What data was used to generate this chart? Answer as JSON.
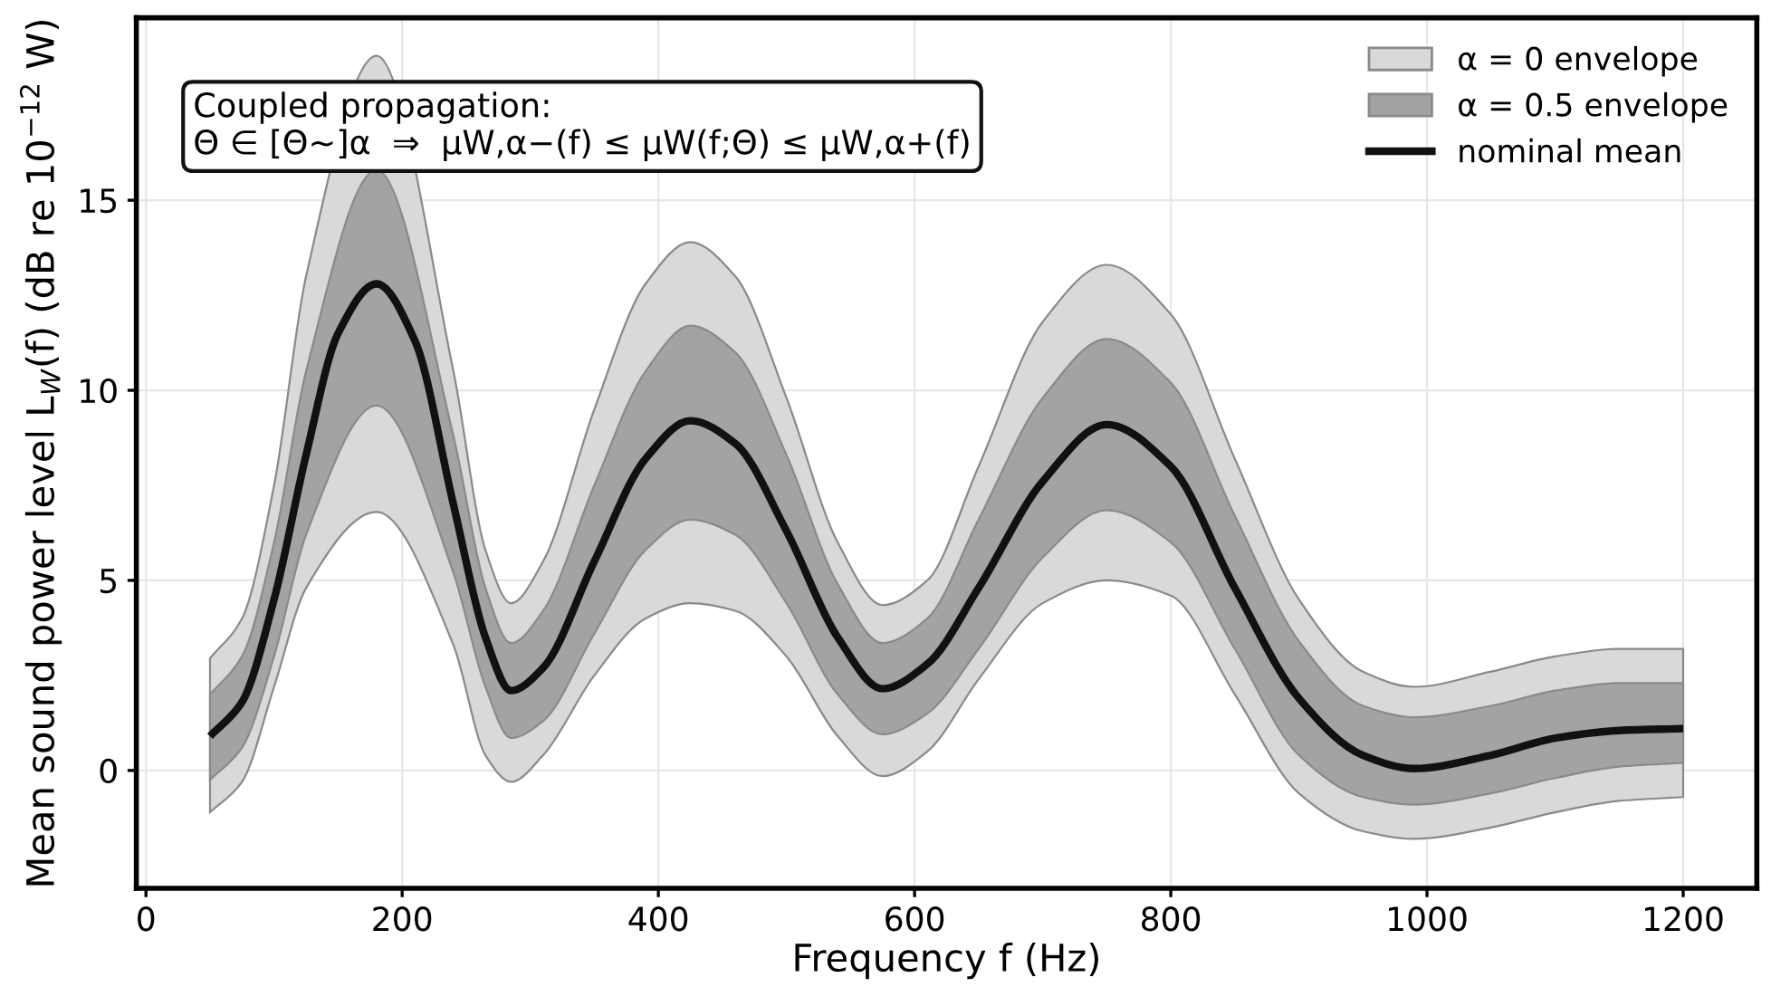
{
  "chart_data": {
    "type": "line",
    "xlabel": "Frequency f (Hz)",
    "ylabel": "Mean sound power level L$_{W}$(f) (dB re 10$^{−12}$ W)",
    "x": [
      50,
      75,
      100,
      125,
      180,
      240,
      265,
      285,
      310,
      350,
      390,
      425,
      460,
      500,
      540,
      575,
      610,
      650,
      700,
      750,
      800,
      850,
      900,
      950,
      990,
      1050,
      1100,
      1150,
      1200
    ],
    "series": [
      {
        "name": "α = 0 envelope",
        "type": "line",
        "color": "#d9d9d9",
        "values": [
          null,
          null,
          null,
          null,
          null,
          null,
          null,
          null,
          null,
          null,
          null,
          null,
          null,
          null,
          null,
          null,
          null,
          null,
          null,
          null,
          null,
          null,
          null,
          null,
          null,
          null,
          null,
          null,
          null
        ],
        "lower": [
          -1.1,
          -0.3,
          2.2,
          4.8,
          6.8,
          3.3,
          0.4,
          -0.3,
          0.4,
          2.5,
          4.0,
          4.4,
          4.2,
          3.0,
          0.9,
          -0.15,
          0.5,
          2.4,
          4.4,
          5.0,
          4.6,
          2.0,
          -0.6,
          -1.6,
          -1.8,
          -1.5,
          -1.1,
          -0.8,
          -0.7
        ],
        "upper": [
          2.95,
          4.0,
          7.5,
          13.0,
          18.8,
          10.5,
          5.8,
          4.4,
          5.5,
          9.5,
          12.8,
          13.9,
          13.0,
          9.8,
          6.0,
          4.35,
          5.0,
          8.0,
          11.8,
          13.3,
          12.0,
          8.2,
          4.5,
          2.6,
          2.2,
          2.6,
          3.0,
          3.2,
          3.2
        ]
      },
      {
        "name": "α = 0.5 envelope",
        "type": "line",
        "color": "#a3a3a3",
        "values": [
          null,
          null,
          null,
          null,
          null,
          null,
          null,
          null,
          null,
          null,
          null,
          null,
          null,
          null,
          null,
          null,
          null,
          null,
          null,
          null,
          null,
          null,
          null,
          null,
          null,
          null,
          null,
          null,
          null
        ],
        "lower": [
          -0.25,
          0.6,
          3.0,
          6.2,
          9.6,
          5.2,
          2.2,
          0.85,
          1.3,
          3.6,
          5.8,
          6.6,
          6.2,
          4.4,
          2.0,
          0.95,
          1.5,
          3.2,
          5.6,
          6.85,
          6.0,
          3.2,
          0.4,
          -0.7,
          -0.9,
          -0.6,
          -0.2,
          0.1,
          0.2
        ],
        "upper": [
          2.0,
          3.0,
          6.0,
          10.5,
          15.8,
          8.8,
          4.8,
          3.35,
          4.2,
          7.5,
          10.5,
          11.7,
          11.0,
          8.3,
          4.9,
          3.35,
          4.0,
          6.6,
          9.8,
          11.35,
          10.2,
          6.7,
          3.4,
          1.7,
          1.4,
          1.7,
          2.1,
          2.3,
          2.3
        ]
      },
      {
        "name": "nominal mean",
        "color": "#111111",
        "x": [
          50,
          75,
          100,
          125,
          150,
          180,
          210,
          240,
          265,
          285,
          310,
          350,
          390,
          425,
          460,
          500,
          540,
          575,
          610,
          650,
          700,
          750,
          800,
          850,
          900,
          950,
          990,
          1050,
          1100,
          1150,
          1200
        ],
        "values": [
          0.9,
          1.8,
          4.5,
          8.3,
          11.5,
          12.8,
          11.3,
          7.0,
          3.5,
          2.1,
          2.7,
          5.5,
          8.2,
          9.2,
          8.6,
          6.3,
          3.5,
          2.15,
          2.8,
          4.8,
          7.6,
          9.1,
          8.0,
          4.8,
          1.9,
          0.4,
          0.05,
          0.4,
          0.85,
          1.05,
          1.1
        ]
      }
    ],
    "annotations": [
      "Coupled propagation:\nΘ ∈ [Θ~]α  ⇒  μW,α−(f) ≤ μW(f;Θ) ≤ μW,α+(f)"
    ],
    "xlim": [
      -7.5,
      1257.5
    ],
    "ylim": [
      -3.1,
      19.8
    ],
    "xticks": [
      0,
      200,
      400,
      600,
      800,
      1000,
      1200
    ],
    "yticks": [
      0,
      5,
      10,
      15
    ],
    "grid": true,
    "legend": "upper right",
    "line_style": "solid",
    "marker": "none"
  }
}
